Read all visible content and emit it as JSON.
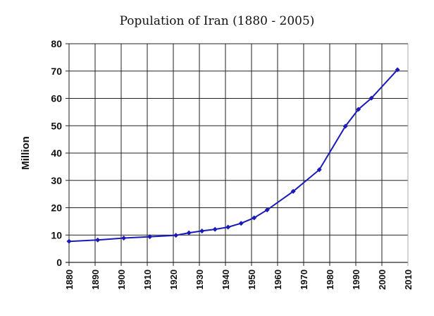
{
  "chart_data": {
    "type": "line",
    "title": "Population of Iran (1880 - 2005)",
    "xlabel": "",
    "ylabel": "Million",
    "xlim": [
      1880,
      2010
    ],
    "ylim": [
      0,
      80
    ],
    "x_ticks": [
      1880,
      1890,
      1900,
      1910,
      1920,
      1930,
      1940,
      1950,
      1960,
      1970,
      1980,
      1990,
      2000,
      2010
    ],
    "y_ticks": [
      0,
      10,
      20,
      30,
      40,
      50,
      60,
      70,
      80
    ],
    "grid": true,
    "legend": null,
    "series": [
      {
        "name": "Population",
        "color": "#1a1ab8",
        "x": [
          1880,
          1891,
          1901,
          1911,
          1921,
          1926,
          1931,
          1936,
          1941,
          1946,
          1951,
          1956,
          1966,
          1976,
          1986,
          1991,
          1996,
          2006
        ],
        "values": [
          7.7,
          8.2,
          8.9,
          9.4,
          9.9,
          10.8,
          11.5,
          12.1,
          12.9,
          14.3,
          16.3,
          19.2,
          26.0,
          33.9,
          49.8,
          56.0,
          60.1,
          70.5
        ]
      }
    ]
  }
}
